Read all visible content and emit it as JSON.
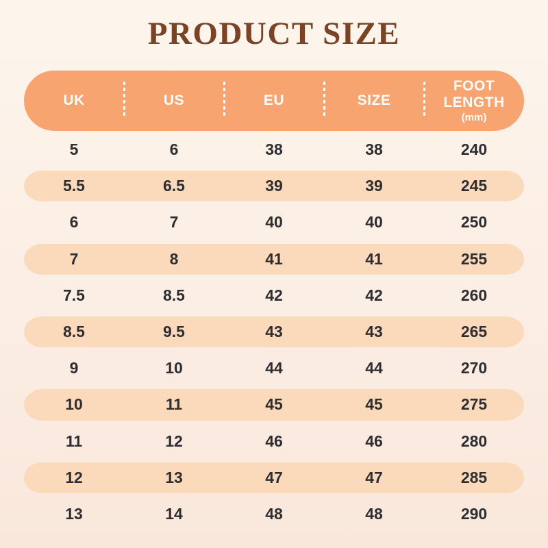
{
  "page": {
    "title": "PRODUCT SIZE"
  },
  "colors": {
    "background_top": "#FDF5EC",
    "background_mid": "#FBEEE4",
    "background_bottom": "#F9E7DB",
    "header_fill": "#F7A470",
    "header_text": "#FFFFFF",
    "row_highlight": "#FBDABB",
    "title_text": "#7B4224",
    "cell_text": "#2E2E32"
  },
  "chart_data": {
    "type": "table",
    "title": "PRODUCT SIZE",
    "columns": [
      {
        "id": "uk",
        "label": "UK"
      },
      {
        "id": "us",
        "label": "US"
      },
      {
        "id": "eu",
        "label": "EU"
      },
      {
        "id": "size",
        "label": "FOOT LENGTH",
        "label_override": "SIZE"
      },
      {
        "id": "foot-length",
        "label": "FOOT LENGTH",
        "sub": "(mm)"
      }
    ],
    "rows": [
      {
        "values": [
          "5",
          "6",
          "38",
          "38",
          "240"
        ],
        "highlighted": false
      },
      {
        "values": [
          "5.5",
          "6.5",
          "39",
          "39",
          "245"
        ],
        "highlighted": true
      },
      {
        "values": [
          "6",
          "7",
          "40",
          "40",
          "250"
        ],
        "highlighted": false
      },
      {
        "values": [
          "7",
          "8",
          "41",
          "41",
          "255"
        ],
        "highlighted": true
      },
      {
        "values": [
          "7.5",
          "8.5",
          "42",
          "42",
          "260"
        ],
        "highlighted": false
      },
      {
        "values": [
          "8.5",
          "9.5",
          "43",
          "43",
          "265"
        ],
        "highlighted": true
      },
      {
        "values": [
          "9",
          "10",
          "44",
          "44",
          "270"
        ],
        "highlighted": false
      },
      {
        "values": [
          "10",
          "11",
          "45",
          "45",
          "275"
        ],
        "highlighted": true
      },
      {
        "values": [
          "11",
          "12",
          "46",
          "46",
          "280"
        ],
        "highlighted": false
      },
      {
        "values": [
          "12",
          "13",
          "47",
          "47",
          "285"
        ],
        "highlighted": true
      },
      {
        "values": [
          "13",
          "14",
          "48",
          "48",
          "290"
        ],
        "highlighted": false
      }
    ],
    "legend": "none",
    "grid": "off",
    "striping": "every second data row highlighted with rounded peach pill"
  }
}
